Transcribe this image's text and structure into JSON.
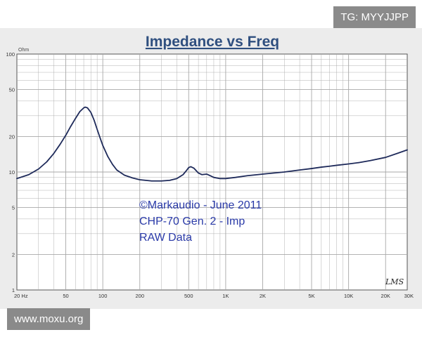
{
  "badges": {
    "top": "TG: MYYJJPP",
    "bottom": "www.moxu.org"
  },
  "chart_data": {
    "type": "line",
    "title": "Impedance vs Freq",
    "ylabel": "Ohm",
    "xlabel": "",
    "x_scale": "log",
    "y_scale": "log",
    "xlim": [
      20,
      30000
    ],
    "ylim": [
      1,
      100
    ],
    "grid": true,
    "x_ticks": [
      {
        "value": 20,
        "label": "20 Hz"
      },
      {
        "value": 50,
        "label": "50"
      },
      {
        "value": 100,
        "label": "100"
      },
      {
        "value": 200,
        "label": "200"
      },
      {
        "value": 500,
        "label": "500"
      },
      {
        "value": 1000,
        "label": "1K"
      },
      {
        "value": 2000,
        "label": "2K"
      },
      {
        "value": 5000,
        "label": "5K"
      },
      {
        "value": 10000,
        "label": "10K"
      },
      {
        "value": 20000,
        "label": "20K"
      },
      {
        "value": 30000,
        "label": "30K"
      }
    ],
    "y_ticks": [
      {
        "value": 1,
        "label": "1"
      },
      {
        "value": 2,
        "label": "2"
      },
      {
        "value": 5,
        "label": "5"
      },
      {
        "value": 10,
        "label": "10"
      },
      {
        "value": 20,
        "label": "20"
      },
      {
        "value": 50,
        "label": "50"
      },
      {
        "value": 100,
        "label": "100"
      }
    ],
    "annotation_lines": [
      "©Markaudio - June 2011",
      "CHP-70  Gen. 2 - Imp",
      "RAW Data"
    ],
    "watermark": "LMS",
    "colors": {
      "line": "#1e2a5a",
      "title": "#2f4f7f",
      "plot_bg": "#ffffff",
      "grid": "#a8a8a8",
      "panel": "#ececec"
    },
    "series": [
      {
        "values": [
          [
            20,
            8.8
          ],
          [
            25,
            9.5
          ],
          [
            30,
            10.6
          ],
          [
            35,
            12.2
          ],
          [
            40,
            14.4
          ],
          [
            45,
            17.2
          ],
          [
            50,
            20.5
          ],
          [
            55,
            24.5
          ],
          [
            60,
            28.5
          ],
          [
            65,
            32.5
          ],
          [
            70,
            35.0
          ],
          [
            72,
            35.5
          ],
          [
            75,
            35.0
          ],
          [
            80,
            32.0
          ],
          [
            85,
            27.5
          ],
          [
            90,
            23.0
          ],
          [
            95,
            19.5
          ],
          [
            100,
            16.8
          ],
          [
            110,
            13.5
          ],
          [
            120,
            11.6
          ],
          [
            130,
            10.4
          ],
          [
            150,
            9.4
          ],
          [
            175,
            8.9
          ],
          [
            200,
            8.6
          ],
          [
            250,
            8.4
          ],
          [
            300,
            8.4
          ],
          [
            350,
            8.5
          ],
          [
            400,
            8.8
          ],
          [
            450,
            9.5
          ],
          [
            480,
            10.3
          ],
          [
            500,
            10.9
          ],
          [
            520,
            11.1
          ],
          [
            550,
            10.8
          ],
          [
            600,
            9.8
          ],
          [
            640,
            9.5
          ],
          [
            700,
            9.6
          ],
          [
            750,
            9.3
          ],
          [
            800,
            9.0
          ],
          [
            900,
            8.8
          ],
          [
            1000,
            8.8
          ],
          [
            1200,
            9.0
          ],
          [
            1500,
            9.3
          ],
          [
            2000,
            9.6
          ],
          [
            3000,
            10.0
          ],
          [
            4000,
            10.4
          ],
          [
            5000,
            10.7
          ],
          [
            6000,
            11.0
          ],
          [
            7000,
            11.2
          ],
          [
            8000,
            11.4
          ],
          [
            10000,
            11.7
          ],
          [
            12000,
            12.0
          ],
          [
            15000,
            12.5
          ],
          [
            20000,
            13.3
          ],
          [
            25000,
            14.4
          ],
          [
            30000,
            15.4
          ]
        ]
      }
    ]
  }
}
